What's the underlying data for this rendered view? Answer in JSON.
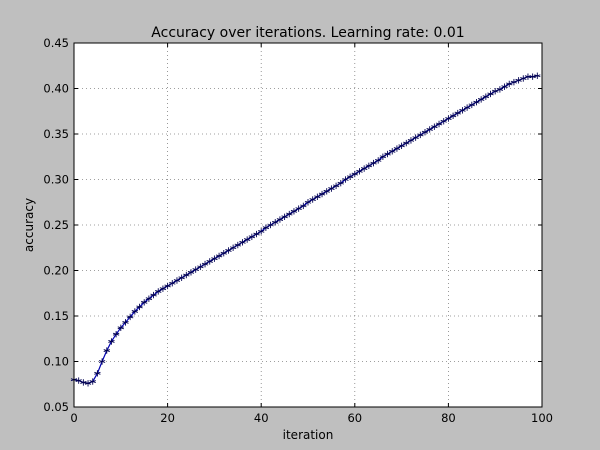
{
  "chart_data": {
    "type": "line",
    "title": "Accuracy over iterations. Learning rate: 0.01",
    "xlabel": "iteration",
    "ylabel": "accuracy",
    "xlim": [
      0,
      100
    ],
    "ylim": [
      0.05,
      0.45
    ],
    "x_ticks": [
      0,
      20,
      40,
      60,
      80,
      100
    ],
    "y_ticks": [
      0.05,
      0.1,
      0.15,
      0.2,
      0.25,
      0.3,
      0.35,
      0.4,
      0.45
    ],
    "x_tick_labels": [
      "0",
      "20",
      "40",
      "60",
      "80",
      "100"
    ],
    "y_tick_labels": [
      "0.05",
      "0.10",
      "0.15",
      "0.20",
      "0.25",
      "0.30",
      "0.35",
      "0.40",
      "0.45"
    ],
    "grid": true,
    "marker": "star",
    "colors": {
      "line": "#0000b0",
      "marker": "#000050",
      "plot_background": "#ffffff",
      "figure_background": "#bfbfbf",
      "grid": "#808080"
    },
    "series": [
      {
        "x": [
          0,
          1,
          2,
          3,
          4,
          5,
          6,
          7,
          8,
          9,
          10,
          11,
          12,
          13,
          14,
          15,
          16,
          17,
          18,
          19,
          20,
          21,
          22,
          23,
          24,
          25,
          26,
          27,
          28,
          29,
          30,
          31,
          32,
          33,
          34,
          35,
          36,
          37,
          38,
          39,
          40,
          41,
          42,
          43,
          44,
          45,
          46,
          47,
          48,
          49,
          50,
          51,
          52,
          53,
          54,
          55,
          56,
          57,
          58,
          59,
          60,
          61,
          62,
          63,
          64,
          65,
          66,
          67,
          68,
          69,
          70,
          71,
          72,
          73,
          74,
          75,
          76,
          77,
          78,
          79,
          80,
          81,
          82,
          83,
          84,
          85,
          86,
          87,
          88,
          89,
          90,
          91,
          92,
          93,
          94,
          95,
          96,
          97,
          98,
          99
        ],
        "y": [
          0.08,
          0.079,
          0.077,
          0.076,
          0.078,
          0.087,
          0.1,
          0.112,
          0.122,
          0.13,
          0.137,
          0.143,
          0.149,
          0.155,
          0.16,
          0.165,
          0.169,
          0.173,
          0.177,
          0.18,
          0.183,
          0.186,
          0.189,
          0.192,
          0.195,
          0.198,
          0.201,
          0.204,
          0.207,
          0.21,
          0.213,
          0.216,
          0.219,
          0.222,
          0.225,
          0.228,
          0.231,
          0.234,
          0.237,
          0.24,
          0.243,
          0.247,
          0.25,
          0.253,
          0.256,
          0.259,
          0.262,
          0.265,
          0.268,
          0.271,
          0.275,
          0.278,
          0.281,
          0.284,
          0.287,
          0.29,
          0.293,
          0.296,
          0.3,
          0.303,
          0.306,
          0.309,
          0.312,
          0.315,
          0.318,
          0.321,
          0.325,
          0.328,
          0.331,
          0.334,
          0.337,
          0.34,
          0.343,
          0.346,
          0.349,
          0.352,
          0.355,
          0.358,
          0.361,
          0.364,
          0.367,
          0.37,
          0.373,
          0.376,
          0.379,
          0.382,
          0.385,
          0.388,
          0.391,
          0.394,
          0.397,
          0.399,
          0.402,
          0.405,
          0.407,
          0.409,
          0.411,
          0.413,
          0.413,
          0.414
        ]
      }
    ]
  }
}
